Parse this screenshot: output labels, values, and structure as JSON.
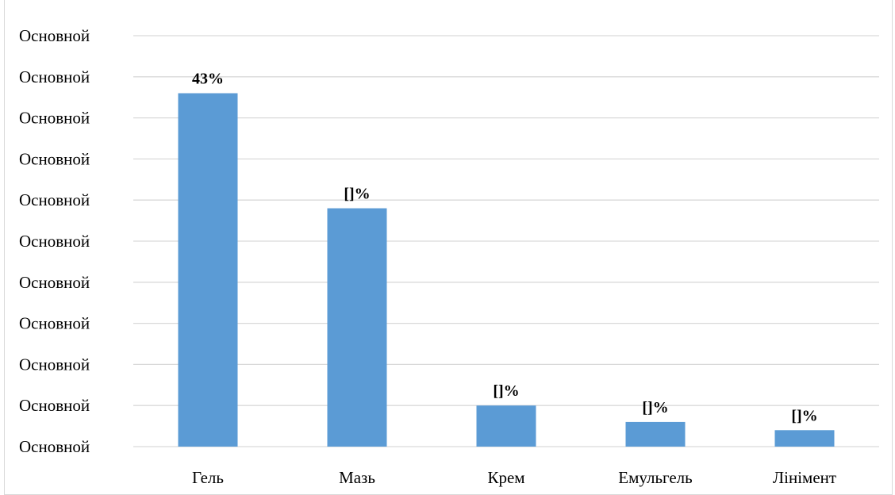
{
  "chart_data": {
    "type": "bar",
    "title": "",
    "xlabel": "",
    "ylabel": "",
    "ylim": [
      0,
      50
    ],
    "grid": true,
    "legend": "none",
    "y_ticks": [
      "Основной",
      "Основной",
      "Основной",
      "Основной",
      "Основной",
      "Основной",
      "Основной",
      "Основной",
      "Основной",
      "Основной",
      "Основной"
    ],
    "categories": [
      "Гель",
      "Мазь",
      "Крем",
      "Емульгель",
      "Лінімент"
    ],
    "values": [
      43,
      29,
      5,
      3,
      2
    ],
    "data_labels": [
      "43%",
      "[]%",
      "[]%",
      "[]%",
      "[]%"
    ],
    "colors": {
      "bar": "#5b9bd5",
      "grid": "#d9d9d9",
      "axis": "#d9d9d9"
    }
  }
}
